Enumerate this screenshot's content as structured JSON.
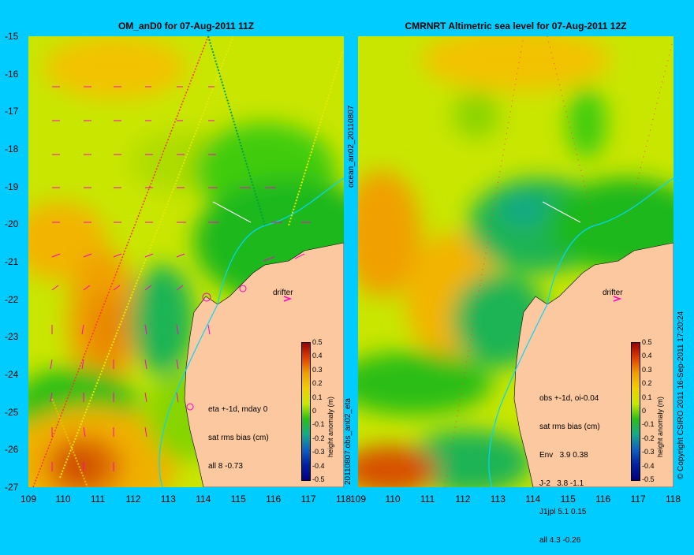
{
  "left": {
    "title": "OM_anD0 for 07-Aug-2011 11Z",
    "side_label": "ocean_an02_20110807",
    "drifter": "drifter",
    "annotation": [
      "eta +-1d, mday 0",
      "sat rms bias (cm)",
      "all 8 -0.73"
    ]
  },
  "right": {
    "title": "CMRNRT Altimetric sea level  for 07-Aug-2011 12Z",
    "side_label": "20110807.obs_an02_eta",
    "drifter": "drifter",
    "annotation": [
      "obs +-1d, oi-0.04",
      "sat rms bias (cm)",
      "Env   3.9 0.38",
      "J-2   3.8 -1.1",
      "J1jpl 5.1 0.15",
      "all 4.3 -0.26"
    ]
  },
  "colorbar": {
    "title": "height anomaly (m)",
    "labels": [
      "0.5",
      "0.4",
      "0.3",
      "0.2",
      "0.1",
      "0",
      "-0.1",
      "-0.2",
      "-0.3",
      "-0.4",
      "-0.5"
    ]
  },
  "copyright": "© Copyright CSIRO 2011   16-Sep-2011 17:20:24",
  "chart_data": [
    {
      "type": "heatmap",
      "title": "OM_anD0 for 07-Aug-2011 11Z",
      "xlabel": "",
      "ylabel": "",
      "xlim": [
        109,
        118
      ],
      "ylim": [
        -27,
        -15
      ],
      "x_ticks": [
        "109",
        "110",
        "111",
        "112",
        "113",
        "114",
        "115",
        "116",
        "117",
        "118"
      ],
      "y_ticks": [
        "-15",
        "-16",
        "-17",
        "-18",
        "-19",
        "-20",
        "-21",
        "-22",
        "-23",
        "-24",
        "-25",
        "-26",
        "-27"
      ],
      "colorbar": {
        "label": "height anomaly (m)",
        "range": [
          -0.5,
          0.5
        ]
      },
      "annotations": [
        "eta +-1d, mday 0",
        "sat rms bias (cm)",
        "all 8 -0.73",
        "drifter"
      ]
    },
    {
      "type": "heatmap",
      "title": "CMRNRT Altimetric sea level  for 07-Aug-2011 12Z",
      "xlabel": "",
      "ylabel": "",
      "xlim": [
        109,
        118
      ],
      "ylim": [
        -27,
        -15
      ],
      "x_ticks": [
        "109",
        "110",
        "111",
        "112",
        "113",
        "114",
        "115",
        "116",
        "117",
        "118"
      ],
      "y_ticks": [],
      "colorbar": {
        "label": "height anomaly (m)",
        "range": [
          -0.5,
          0.5
        ]
      },
      "annotations": [
        "obs +-1d, oi-0.04",
        "sat rms bias (cm)",
        "Env 3.9 0.38",
        "J-2 3.8 -1.1",
        "J1jpl 5.1 0.15",
        "all 4.3 -0.26",
        "drifter"
      ]
    }
  ]
}
